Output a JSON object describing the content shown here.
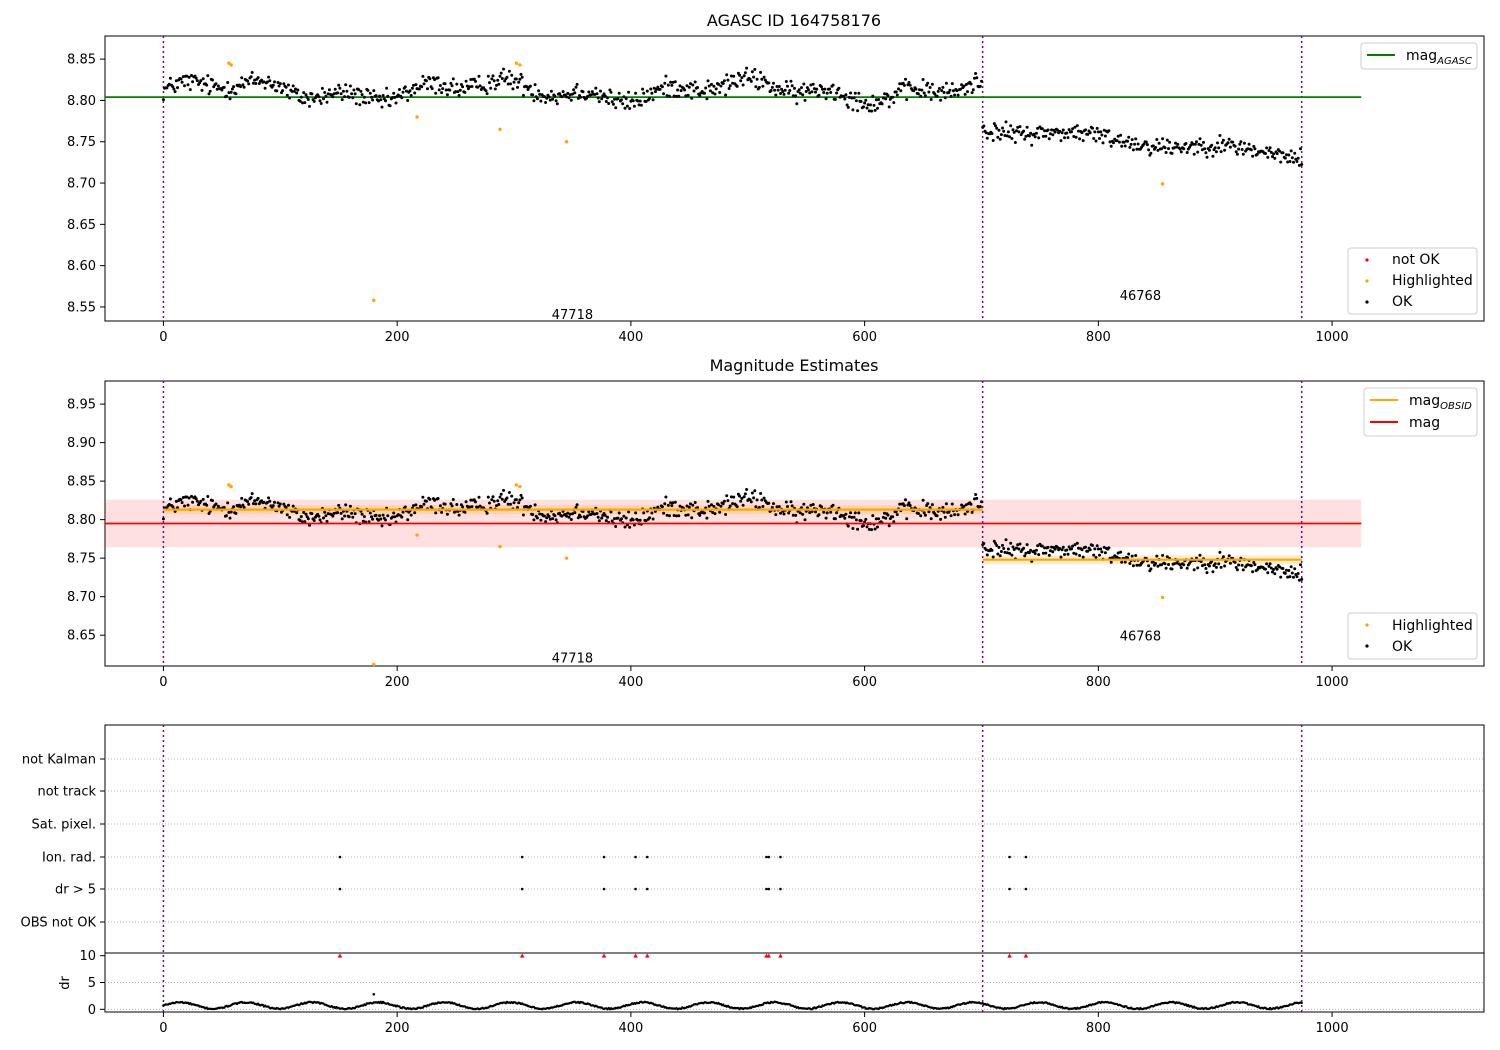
{
  "chart_data": [
    {
      "type": "scatter",
      "title": "AGASC ID 164758176",
      "xlim": [
        -50,
        1130
      ],
      "ylim": [
        8.533,
        8.878
      ],
      "x_ticks": [
        0,
        200,
        400,
        600,
        800,
        1000
      ],
      "y_ticks": [
        8.55,
        8.6,
        8.65,
        8.7,
        8.75,
        8.8,
        8.85
      ],
      "y_tick_labels": [
        "8.55",
        "8.60",
        "8.65",
        "8.70",
        "8.75",
        "8.80",
        "8.85"
      ],
      "obs_boundaries": [
        0,
        701,
        974
      ],
      "obsid_labels": [
        {
          "text": "47718",
          "x": 350,
          "y": 8.54
        },
        {
          "text": "46768",
          "x": 836,
          "y": 8.563
        }
      ],
      "agasc_mag": {
        "value": 8.804,
        "x_range": [
          -50,
          1025
        ]
      },
      "segments": [
        {
          "x_range": [
            0,
            700
          ],
          "base": 8.812,
          "amp": 0.012
        },
        {
          "x_range": [
            701,
            974
          ],
          "base_start": 8.767,
          "base_end": 8.733,
          "amp": 0.011
        }
      ],
      "highlighted": [
        {
          "x": 56,
          "y": 8.845
        },
        {
          "x": 58,
          "y": 8.843
        },
        {
          "x": 180,
          "y": 8.558
        },
        {
          "x": 217,
          "y": 8.78
        },
        {
          "x": 288,
          "y": 8.765
        },
        {
          "x": 302,
          "y": 8.845
        },
        {
          "x": 305,
          "y": 8.843
        },
        {
          "x": 345,
          "y": 8.75
        },
        {
          "x": 855,
          "y": 8.699
        }
      ],
      "legend_top": [
        {
          "label": "mag",
          "sub": "AGASC",
          "color": "#008000"
        }
      ],
      "legend_bottom": [
        {
          "label": "not OK",
          "color": "#ff0000"
        },
        {
          "label": "Highlighted",
          "color": "#ffa500"
        },
        {
          "label": "OK",
          "color": "#000000"
        }
      ]
    },
    {
      "type": "scatter",
      "title": "Magnitude Estimates",
      "xlim": [
        -50,
        1130
      ],
      "ylim": [
        8.61,
        8.98
      ],
      "x_ticks": [
        0,
        200,
        400,
        600,
        800,
        1000
      ],
      "y_ticks": [
        8.65,
        8.7,
        8.75,
        8.8,
        8.85,
        8.9,
        8.95
      ],
      "y_tick_labels": [
        "8.65",
        "8.70",
        "8.75",
        "8.80",
        "8.85",
        "8.90",
        "8.95"
      ],
      "obs_boundaries": [
        0,
        701,
        974
      ],
      "obsid_labels": [
        {
          "text": "47718",
          "x": 350,
          "y": 8.62
        },
        {
          "text": "46768",
          "x": 836,
          "y": 8.648
        }
      ],
      "mag": {
        "value": 8.795,
        "band": [
          8.764,
          8.826
        ],
        "x_range": [
          -50,
          1025
        ]
      },
      "mag_obsid": [
        {
          "value": 8.813,
          "x_range": [
            0,
            701
          ]
        },
        {
          "value": 8.748,
          "x_range": [
            701,
            974
          ]
        }
      ],
      "segments": [
        {
          "x_range": [
            0,
            700
          ],
          "base": 8.812,
          "amp": 0.012
        },
        {
          "x_range": [
            701,
            974
          ],
          "base_start": 8.767,
          "base_end": 8.733,
          "amp": 0.011
        }
      ],
      "highlighted": [
        {
          "x": 56,
          "y": 8.845
        },
        {
          "x": 58,
          "y": 8.843
        },
        {
          "x": 180,
          "y": 8.612
        },
        {
          "x": 217,
          "y": 8.78
        },
        {
          "x": 288,
          "y": 8.765
        },
        {
          "x": 302,
          "y": 8.845
        },
        {
          "x": 305,
          "y": 8.843
        },
        {
          "x": 345,
          "y": 8.75
        },
        {
          "x": 855,
          "y": 8.699
        }
      ],
      "legend_top": [
        {
          "label": "mag",
          "sub": "OBSID",
          "color": "#ffa500"
        },
        {
          "label": "mag",
          "sub": "",
          "color": "#ff0000"
        }
      ],
      "legend_bottom": [
        {
          "label": "Highlighted",
          "color": "#ffa500"
        },
        {
          "label": "OK",
          "color": "#000000"
        }
      ]
    },
    {
      "type": "scatter",
      "xlim": [
        -50,
        1130
      ],
      "x_ticks": [
        0,
        200,
        400,
        600,
        800,
        1000
      ],
      "obs_boundaries": [
        0,
        701,
        974
      ],
      "flag_rows": [
        "not Kalman",
        "not track",
        "Sat. pixel.",
        "Ion. rad.",
        "dr > 5",
        "OBS not OK"
      ],
      "flag_points": {
        "Ion. rad.": [
          151,
          307,
          377,
          404,
          414,
          516,
          518,
          528,
          724,
          738
        ],
        "dr > 5": [
          151,
          307,
          377,
          404,
          414,
          516,
          518,
          528,
          724,
          738
        ]
      },
      "dr_ylim": [
        0,
        10
      ],
      "dr_ticks": [
        0,
        5,
        10
      ],
      "dr_tick_labels": [
        "0",
        "5",
        "10"
      ],
      "dr_label": "dr",
      "dr_clipped_x": [
        151,
        307,
        377,
        404,
        414,
        516,
        518,
        528,
        724,
        738
      ],
      "dr_outlier": {
        "x": 180,
        "y": 2.8
      }
    }
  ]
}
